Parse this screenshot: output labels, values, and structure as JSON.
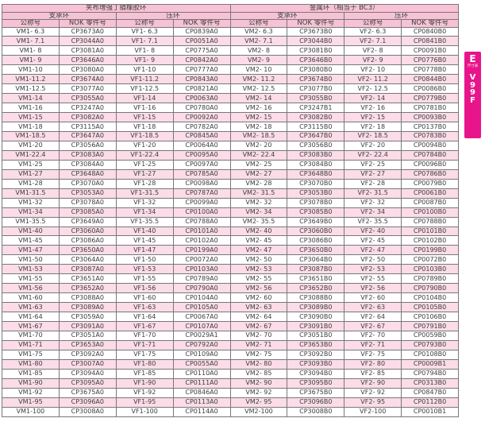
{
  "colors": {
    "header_pink": "#f7c2d5",
    "zebra_pink": "#fbdce8",
    "tab_magenta": "#e8148b",
    "border_gray": "#787878",
    "text_gray": "#3d3d3d"
  },
  "side_tab": {
    "letter": "E",
    "caption": "尺寸表",
    "code_chars": [
      "V",
      "9",
      "9",
      "F"
    ]
  },
  "table": {
    "group_headers": [
      "夹布增强丁腈橡胶环",
      "金属环（相当于 BC3）"
    ],
    "sub_headers": [
      "支承环",
      "压环",
      "支承环",
      "压环"
    ],
    "col_headers": [
      "公称号",
      "NOK 零件号",
      "公称号",
      "NOK 零件号",
      "公称号",
      "NOK 零件号",
      "公称号",
      "NOK 零件号"
    ],
    "rows": [
      [
        "VM1- 6.3",
        "CP3673A0",
        "VF1- 6.3",
        "CP0839A0",
        "VM2- 6.3",
        "CP3673B0",
        "VF2- 6.3",
        "CP0840B0"
      ],
      [
        "VM1- 7.1",
        "CP3044A0",
        "VF1- 7.1",
        "CP0051A0",
        "VM2- 7.1",
        "CP3044B0",
        "VF2- 7.1",
        "CP0841B0"
      ],
      [
        "VM1- 8",
        "CP3081A0",
        "VF1- 8",
        "CP0775A0",
        "VM2- 8",
        "CP3081B0",
        "VF2- 8",
        "CP0091B0"
      ],
      [
        "VM1- 9",
        "CP3646A0",
        "VF1- 9",
        "CP0842A0",
        "VM2- 9",
        "CP3646B0",
        "VF2- 9",
        "CP0776B0"
      ],
      [
        "VM1-10",
        "CP3080A0",
        "VF1-10",
        "CP0777A0",
        "VM2- 10",
        "CP3080B0",
        "VF2- 10",
        "CP0778B0"
      ],
      [
        "VM1-11.2",
        "CP3674A0",
        "VF1-11.2",
        "CP0843A0",
        "VM2- 11.2",
        "CP3674B0",
        "VF2- 11.2",
        "CP0844B0"
      ],
      [
        "VM1-12.5",
        "CP3077A0",
        "VF1-12.5",
        "CP0821A0",
        "VM2- 12.5",
        "CP3077B0",
        "VF2- 12.5",
        "CP0086B0"
      ],
      [
        "VM1-14",
        "CP3055A0",
        "VF1-14",
        "CP0063A0",
        "VM2- 14",
        "CP3055B0",
        "VF2- 14",
        "CP0779B0"
      ],
      [
        "VM1-16",
        "CP3247A0",
        "VF1-16",
        "CP0780A0",
        "VM2- 16",
        "CP3247B1",
        "VF2- 16",
        "CP0781B0"
      ],
      [
        "VM1-15",
        "CP3082A0",
        "VF1-15",
        "CP0092A0",
        "VM2- 15",
        "CP3082B0",
        "VF2- 15",
        "CP0093B0"
      ],
      [
        "VM1-18",
        "CP3115A0",
        "VF1-18",
        "CP0782A0",
        "VM2- 18",
        "CP3115B0",
        "VF2- 18",
        "CP0137B0"
      ],
      [
        "VM1-18.5",
        "CP3647A0",
        "VF1-18.5",
        "CP0845A0",
        "VM2- 18.5",
        "CP3647B0",
        "VF2- 18.5",
        "CP0783B0"
      ],
      [
        "VM1-20",
        "CP3056A0",
        "VF1-20",
        "CP0064A0",
        "VM2- 20",
        "CP3056B0",
        "VF2- 20",
        "CP0094B0"
      ],
      [
        "VM1-22.4",
        "CP3083A0",
        "VF1-22.4",
        "CP0095A0",
        "VM2- 22.4",
        "CP3083B0",
        "VF2- 22.4",
        "CP0784B0"
      ],
      [
        "VM1-25",
        "CP3084A0",
        "VF1-25",
        "CP0097A0",
        "VM2- 25",
        "CP3084B0",
        "VF2- 25",
        "CP0096B0"
      ],
      [
        "VM1-27",
        "CP3648A0",
        "VF1-27",
        "CP0785A0",
        "VM2- 27",
        "CP3648B0",
        "VF2- 27",
        "CP0786B0"
      ],
      [
        "VM1-28",
        "CP3070A0",
        "VF1-28",
        "CP0098A0",
        "VM2- 28",
        "CP3070B0",
        "VF2- 28",
        "CP0079B0"
      ],
      [
        "VM1-31.5",
        "CP3053A0",
        "VF1-31.5",
        "CP0787A0",
        "VM2- 31.5",
        "CP3053B0",
        "VF2- 31.5",
        "CP0061B0"
      ],
      [
        "VM1-32",
        "CP3078A0",
        "VF1-32",
        "CP0099A0",
        "VM2- 32",
        "CP3078B0",
        "VF2- 32",
        "CP0087B0"
      ],
      [
        "VM1-34",
        "CP3085A0",
        "VF1-34",
        "CP0100A0",
        "VM2- 34",
        "CP3085B0",
        "VF2- 34",
        "CP0100B0"
      ],
      [
        "VM1-35.5",
        "CP3649A0",
        "VF1-35.5",
        "CP0788A0",
        "VM2- 35.5",
        "CP3649B0",
        "VF2- 35.5",
        "CP0788B0"
      ],
      [
        "VM1-40",
        "CP3060A0",
        "VF1-40",
        "CP0101A0",
        "VM2- 40",
        "CP3060B0",
        "VF2- 40",
        "CP0101B0"
      ],
      [
        "VM1-45",
        "CP3086A0",
        "VF1-45",
        "CP0102A0",
        "VM2- 45",
        "CP3086B0",
        "VF2- 45",
        "CP0102B0"
      ],
      [
        "VM1-47",
        "CP3650A0",
        "VF1-47",
        "CP0199A0",
        "VM2- 47",
        "CP3650B0",
        "VF2- 47",
        "CP0199B0"
      ],
      [
        "VM1-50",
        "CP3064A0",
        "VF1-50",
        "CP0072A0",
        "VM2- 50",
        "CP3064B0",
        "VF2- 50",
        "CP0072B0"
      ],
      [
        "VM1-53",
        "CP3087A0",
        "VF1-53",
        "CP0103A0",
        "VM2- 53",
        "CP3087B0",
        "VF2- 53",
        "CP0103B0"
      ],
      [
        "VM1-55",
        "CP3651A0",
        "VF1-55",
        "CP0789A0",
        "VM2- 55",
        "CP3651B0",
        "VF2- 55",
        "CP0789B0"
      ],
      [
        "VM1-56",
        "CP3652A0",
        "VF1-56",
        "CP0790A0",
        "VM2- 56",
        "CP3652B0",
        "VF2- 56",
        "CP0790B0"
      ],
      [
        "VM1-60",
        "CP3088A0",
        "VF1-60",
        "CP0104A0",
        "VM2- 60",
        "CP3088B0",
        "VF2- 60",
        "CP0104B0"
      ],
      [
        "VM1-63",
        "CP3089A0",
        "VF1-63",
        "CP0105A0",
        "VM2- 63",
        "CP3089B0",
        "VF2- 63",
        "CP0105B0"
      ],
      [
        "VM1-64",
        "CP3059A0",
        "VF1-64",
        "CP0067A0",
        "VM2- 64",
        "CP3090B0",
        "VF2- 64",
        "CP0106B0"
      ],
      [
        "VM1-67",
        "CP3091A0",
        "VF1-67",
        "CP0107A0",
        "VM2- 67",
        "CP3091B0",
        "VF2- 67",
        "CP0791B0"
      ],
      [
        "VM1-70",
        "CP3051A0",
        "VF1-70",
        "CP0029A1",
        "VM2- 70",
        "CP3051B0",
        "VF2- 70",
        "CP0059B0"
      ],
      [
        "VM1-71",
        "CP3653A0",
        "VF1-71",
        "CP0792A0",
        "VM2- 71",
        "CP3653B0",
        "VF2- 71",
        "CP0793B0"
      ],
      [
        "VM1-75",
        "CP3092A0",
        "VF1-75",
        "CP0109A0",
        "VM2- 75",
        "CP3092B0",
        "VF2- 75",
        "CP0108B0"
      ],
      [
        "VM1-80",
        "CP3007A0",
        "VF1-80",
        "CP0055A0",
        "VM2- 80",
        "CP3093B0",
        "VF2- 80",
        "CP0009B1"
      ],
      [
        "VM1-85",
        "CP3094A0",
        "VF1-85",
        "CP0110A0",
        "VM2- 85",
        "CP3094B0",
        "VF2- 85",
        "CP0794B0"
      ],
      [
        "VM1-90",
        "CP3095A0",
        "VF1-90",
        "CP0111A0",
        "VM2- 90",
        "CP3095B0",
        "VF2- 90",
        "CP0313B0"
      ],
      [
        "VM1-92",
        "CP3675A0",
        "VF1-92",
        "CP0846A0",
        "VM2- 92",
        "CP3675B0",
        "VF2- 92",
        "CP0847B0"
      ],
      [
        "VM1-95",
        "CP3096A0",
        "VF1-95",
        "CP0113A0",
        "VM2- 95",
        "CP3096B0",
        "VF2- 95",
        "CP0112B0"
      ],
      [
        "VM1-100",
        "CP3008A0",
        "VF1-100",
        "CP0114A0",
        "VM2-100",
        "CP3008B0",
        "VF2-100",
        "CP0010B1"
      ]
    ]
  }
}
